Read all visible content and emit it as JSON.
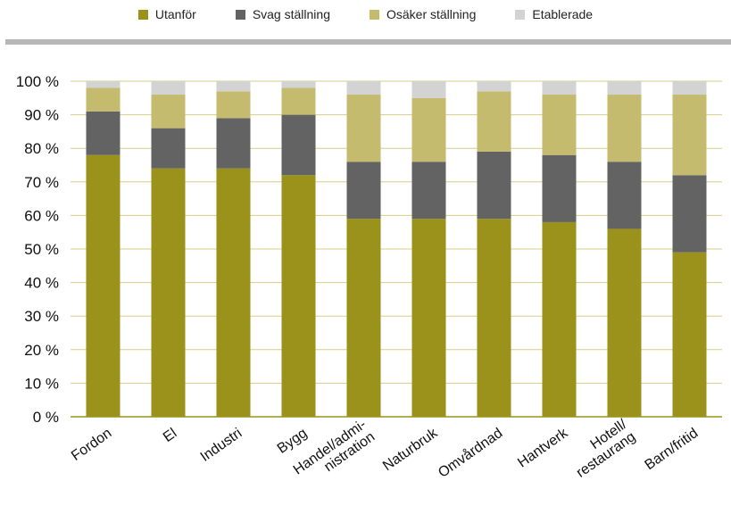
{
  "chart_data": {
    "type": "bar",
    "stacked": true,
    "categories": [
      "Fordon",
      "El",
      "Industri",
      "Bygg",
      "Handel/admi-\nnistration",
      "Naturbruk",
      "Omvårdnad",
      "Hantverk",
      "Hotell/\nrestaurang",
      "Barn/fritid"
    ],
    "series": [
      {
        "name": "Utanför",
        "color": "#9a921b",
        "values": [
          78,
          74,
          74,
          72,
          59,
          59,
          59,
          58,
          56,
          49
        ]
      },
      {
        "name": "Svag ställning",
        "color": "#636363",
        "values": [
          13,
          12,
          15,
          18,
          17,
          17,
          20,
          20,
          20,
          23
        ]
      },
      {
        "name": "Osäker ställning",
        "color": "#c4bb6e",
        "values": [
          7,
          10,
          8,
          8,
          20,
          19,
          18,
          18,
          20,
          24
        ]
      },
      {
        "name": "Etablerade",
        "color": "#d3d3d3",
        "values": [
          2,
          4,
          3,
          2,
          4,
          5,
          3,
          4,
          4,
          4
        ]
      }
    ],
    "ylim": [
      0,
      100
    ],
    "yticks": [
      "0 %",
      "10 %",
      "20 %",
      "30 %",
      "40 %",
      "50 %",
      "60 %",
      "70 %",
      "80 %",
      "90 %",
      "100 %"
    ],
    "grid": true,
    "legend_position": "top"
  }
}
